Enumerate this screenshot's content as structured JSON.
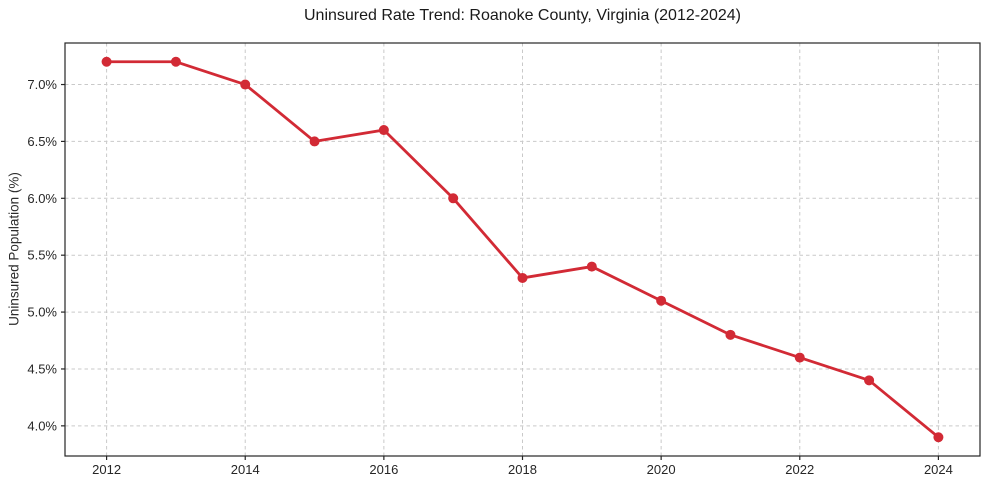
{
  "chart_data": {
    "type": "line",
    "title": "Uninsured Rate Trend: Roanoke County, Virginia (2012-2024)",
    "xlabel": "",
    "ylabel": "Uninsured Population (%)",
    "series": [
      {
        "name": "Uninsured Rate",
        "x": [
          2012,
          2013,
          2014,
          2015,
          2016,
          2017,
          2018,
          2019,
          2020,
          2021,
          2022,
          2023,
          2024
        ],
        "values": [
          7.2,
          7.2,
          7.0,
          6.5,
          6.6,
          6.0,
          5.3,
          5.4,
          5.1,
          4.8,
          4.6,
          4.4,
          3.9
        ]
      }
    ],
    "xlim": [
      2011.4,
      2024.6
    ],
    "ylim": [
      3.735,
      7.365
    ],
    "xticks": [
      2012,
      2014,
      2016,
      2018,
      2020,
      2022,
      2024
    ],
    "xtick_labels": [
      "2012",
      "2014",
      "2016",
      "2018",
      "2020",
      "2022",
      "2024"
    ],
    "yticks": [
      4.0,
      4.5,
      5.0,
      5.5,
      6.0,
      6.5,
      7.0
    ],
    "ytick_labels": [
      "4.0%",
      "4.5%",
      "5.0%",
      "5.5%",
      "6.0%",
      "6.5%",
      "7.0%"
    ],
    "grid": "on",
    "grid_style": "dashed",
    "legend": "none",
    "colors": {
      "line": "#d22a35",
      "marker": "#d22a35",
      "grid": "#c9c9c9",
      "spine": "#262626",
      "tick_label": "#262626",
      "title": "#1a1a1a",
      "background": "#ffffff"
    }
  }
}
